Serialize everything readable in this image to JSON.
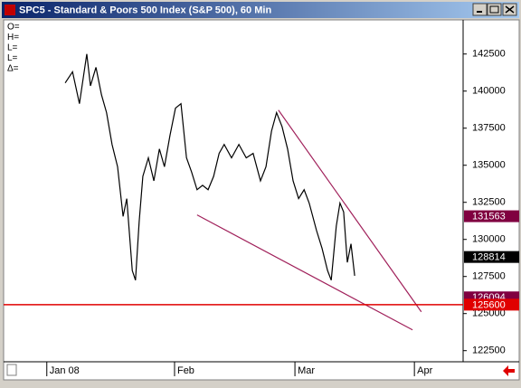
{
  "window_title": "SPC5 - Standard & Poors 500 Index (S&P 500), 60 Min",
  "readout_labels": [
    "O=",
    "H=",
    "L=",
    "L=",
    "Δ="
  ],
  "chart_data": {
    "type": "line",
    "color": "#000000",
    "x": [
      13.4,
      15.0,
      16.5,
      18.1,
      18.9,
      20.1,
      21.3,
      22.4,
      23.6,
      24.8,
      26.0,
      26.8,
      28.0,
      28.7,
      29.5,
      30.3,
      31.5,
      32.7,
      33.9,
      35.0,
      36.2,
      37.4,
      38.6,
      39.8,
      40.9,
      42.1,
      43.3,
      44.5,
      45.7,
      46.9,
      48.0,
      49.6,
      51.2,
      52.8,
      54.3,
      55.9,
      57.1,
      58.3,
      59.4,
      60.6,
      61.8,
      63.0,
      64.2,
      65.4,
      66.5,
      68.1,
      69.3,
      70.5,
      71.3,
      72.4,
      73.2,
      74.0,
      74.8,
      75.6,
      76.4
    ],
    "values": [
      140550,
      141300,
      139150,
      142500,
      140350,
      141600,
      139750,
      138550,
      136400,
      134900,
      131550,
      132750,
      127900,
      127250,
      131200,
      134250,
      135500,
      133950,
      136100,
      134900,
      137000,
      138850,
      139150,
      135500,
      134550,
      133350,
      133650,
      133350,
      134250,
      135800,
      136400,
      135500,
      136400,
      135500,
      135800,
      133950,
      134900,
      137300,
      138550,
      137600,
      136100,
      133950,
      132750,
      133350,
      132450,
      130600,
      129400,
      127900,
      127250,
      130900,
      132450,
      131850,
      128450,
      129700,
      127550
    ],
    "xlim": [
      0,
      100
    ],
    "xticks": [
      {
        "value": 9.4,
        "label": "Jan 08"
      },
      {
        "value": 37.2,
        "label": "Feb"
      },
      {
        "value": 63.4,
        "label": "Mar"
      },
      {
        "value": 89.4,
        "label": "Apr"
      }
    ],
    "ylim": [
      121750,
      144800
    ],
    "yticks": [
      122500,
      125000,
      127500,
      130000,
      132500,
      135000,
      137500,
      140000,
      142500
    ],
    "trendlines": [
      {
        "x": [
          59.8,
          90.9
        ],
        "values": [
          138720,
          125120
        ],
        "color": "#a0205a"
      },
      {
        "x": [
          42.1,
          89.0
        ],
        "values": [
          131650,
          123900
        ],
        "color": "#a0205a"
      }
    ],
    "price_markers": [
      {
        "value": 131563,
        "color": "#800040"
      },
      {
        "value": 128814,
        "color": "#000000"
      },
      {
        "value": 126094,
        "color": "#800040"
      },
      {
        "value": 125600,
        "color": "#e00000",
        "line": true
      }
    ]
  }
}
